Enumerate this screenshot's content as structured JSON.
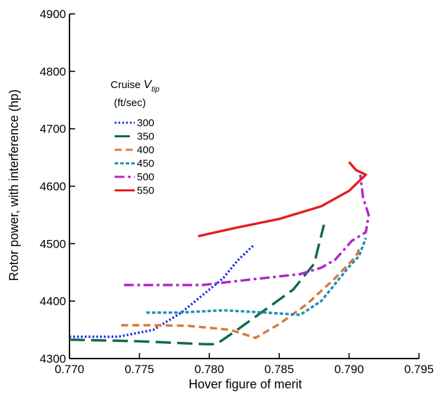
{
  "chart_data": {
    "type": "line",
    "title": "",
    "xlabel": "Hover figure of merit",
    "ylabel": "Rotor power, with interference (hp)",
    "xlim": [
      0.77,
      0.795
    ],
    "ylim": [
      4300,
      4900
    ],
    "xticks": [
      "0.770",
      "0.775",
      "0.780",
      "0.785",
      "0.790",
      "0.795"
    ],
    "yticks": [
      "4300",
      "4400",
      "4500",
      "4600",
      "4700",
      "4800",
      "4900"
    ],
    "grid": false,
    "legend": {
      "title_main": "Cruise ",
      "title_var": "V",
      "title_sub": "tip",
      "title_units": "(ft/sec)",
      "placement": "upper-left"
    },
    "series": [
      {
        "name": "300",
        "color": "#1a2de0",
        "dash": "dotted",
        "points": [
          [
            0.77,
            4338
          ],
          [
            0.7735,
            4338
          ],
          [
            0.776,
            4350
          ],
          [
            0.778,
            4380
          ],
          [
            0.7795,
            4410
          ],
          [
            0.781,
            4440
          ],
          [
            0.782,
            4470
          ],
          [
            0.7832,
            4498
          ]
        ]
      },
      {
        "name": "350",
        "color": "#0f6b4a",
        "dash": "longdash",
        "points": [
          [
            0.77,
            4333
          ],
          [
            0.775,
            4330
          ],
          [
            0.7797,
            4325
          ],
          [
            0.7805,
            4325
          ],
          [
            0.782,
            4350
          ],
          [
            0.784,
            4385
          ],
          [
            0.786,
            4420
          ],
          [
            0.7875,
            4465
          ],
          [
            0.7882,
            4533
          ]
        ]
      },
      {
        "name": "400",
        "color": "#d87a3a",
        "dash": "dash",
        "points": [
          [
            0.7737,
            4358
          ],
          [
            0.776,
            4358
          ],
          [
            0.7785,
            4357
          ],
          [
            0.7815,
            4350
          ],
          [
            0.7833,
            4336
          ],
          [
            0.785,
            4360
          ],
          [
            0.787,
            4395
          ],
          [
            0.789,
            4440
          ],
          [
            0.7905,
            4478
          ],
          [
            0.7907,
            4490
          ]
        ]
      },
      {
        "name": "450",
        "color": "#1f8fb8",
        "dash": "shortdash",
        "points": [
          [
            0.7755,
            4380
          ],
          [
            0.7778,
            4380
          ],
          [
            0.781,
            4384
          ],
          [
            0.784,
            4380
          ],
          [
            0.7865,
            4376
          ],
          [
            0.788,
            4400
          ],
          [
            0.789,
            4430
          ],
          [
            0.79,
            4460
          ],
          [
            0.7907,
            4478
          ],
          [
            0.7912,
            4510
          ]
        ]
      },
      {
        "name": "500",
        "color": "#b026c7",
        "dash": "dashdot",
        "points": [
          [
            0.7739,
            4428
          ],
          [
            0.778,
            4428
          ],
          [
            0.7795,
            4428
          ],
          [
            0.782,
            4435
          ],
          [
            0.7865,
            4447
          ],
          [
            0.788,
            4458
          ],
          [
            0.789,
            4472
          ],
          [
            0.7902,
            4505
          ],
          [
            0.7912,
            4520
          ],
          [
            0.7914,
            4550
          ],
          [
            0.791,
            4580
          ],
          [
            0.7908,
            4620
          ]
        ]
      },
      {
        "name": "550",
        "color": "#e51e1e",
        "dash": "solid",
        "points": [
          [
            0.7792,
            4513
          ],
          [
            0.782,
            4528
          ],
          [
            0.785,
            4543
          ],
          [
            0.788,
            4565
          ],
          [
            0.79,
            4592
          ],
          [
            0.7912,
            4620
          ],
          [
            0.7905,
            4628
          ],
          [
            0.79,
            4642
          ]
        ]
      }
    ]
  }
}
